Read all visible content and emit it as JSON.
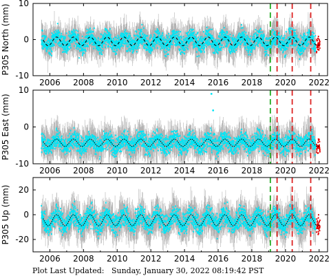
{
  "footer_text": "Plot Last Updated:   Sunday, January 30, 2022 08:19:42 PST",
  "colors": {
    "data": "#00e5f5",
    "error_bars": "#a6a6a6",
    "model": "#000000",
    "recent_data": "#e00000",
    "offset_antenna_or_equipment": "#22aa22",
    "offset_earthquake": "#dd2222"
  },
  "chart_data": [
    {
      "type": "scatter",
      "ylabel": "P305 North (mm)",
      "ylim": [
        -10,
        10
      ],
      "yticks": [
        -10,
        0,
        10
      ],
      "xlim": [
        2005.0,
        2022.5
      ],
      "xticks": [
        2006,
        2008,
        2010,
        2012,
        2014,
        2016,
        2018,
        2020,
        2022
      ],
      "grid": false,
      "model_mean": -0.5,
      "model_seasonal_amplitude": 1.2,
      "data_scatter_amplitude": 2.5,
      "series": [
        {
          "role": "model",
          "style": "dashed",
          "x": [
            2005.6,
            2022.0
          ]
        },
        {
          "role": "data",
          "x": [
            2005.5,
            2022.0
          ]
        }
      ],
      "offsets": [
        {
          "x": 2019.1,
          "color": "green"
        },
        {
          "x": 2019.5,
          "color": "red"
        },
        {
          "x": 2020.4,
          "color": "red"
        },
        {
          "x": 2021.5,
          "color": "red"
        }
      ]
    },
    {
      "type": "scatter",
      "ylabel": "P305 East (mm)",
      "ylim": [
        -10,
        10
      ],
      "yticks": [
        -10,
        0,
        10
      ],
      "xlim": [
        2005.0,
        2022.5
      ],
      "xticks": [
        2006,
        2008,
        2010,
        2012,
        2014,
        2016,
        2018,
        2020,
        2022
      ],
      "grid": false,
      "model_mean": -4.3,
      "model_seasonal_amplitude": 1.0,
      "data_scatter_amplitude": 2.5,
      "series": [
        {
          "role": "model",
          "style": "dotted",
          "x": [
            2005.6,
            2022.0
          ]
        },
        {
          "role": "data",
          "x": [
            2005.5,
            2022.0
          ]
        }
      ],
      "outliers": [
        {
          "x": 2015.6,
          "y": 9.0
        },
        {
          "x": 2015.7,
          "y": 4.5
        }
      ],
      "offsets": [
        {
          "x": 2019.1,
          "color": "green"
        },
        {
          "x": 2019.5,
          "color": "red"
        },
        {
          "x": 2020.4,
          "color": "red"
        },
        {
          "x": 2021.5,
          "color": "red"
        }
      ]
    },
    {
      "type": "scatter",
      "ylabel": "P305 Up (mm)",
      "ylim": [
        -30,
        30
      ],
      "yticks": [
        -20,
        0,
        20
      ],
      "xlim": [
        2005.0,
        2022.5
      ],
      "xticks": [
        2006,
        2008,
        2010,
        2012,
        2014,
        2016,
        2018,
        2020,
        2022
      ],
      "grid": false,
      "model_mean": -4.5,
      "model_seasonal_amplitude": 4.5,
      "data_scatter_amplitude": 8,
      "series": [
        {
          "role": "model",
          "style": "dotted",
          "x": [
            2005.6,
            2022.0
          ]
        },
        {
          "role": "data",
          "x": [
            2005.5,
            2022.0
          ]
        }
      ],
      "offsets": [
        {
          "x": 2019.1,
          "color": "green"
        },
        {
          "x": 2019.5,
          "color": "red"
        },
        {
          "x": 2020.4,
          "color": "red"
        },
        {
          "x": 2021.5,
          "color": "red"
        }
      ]
    }
  ]
}
